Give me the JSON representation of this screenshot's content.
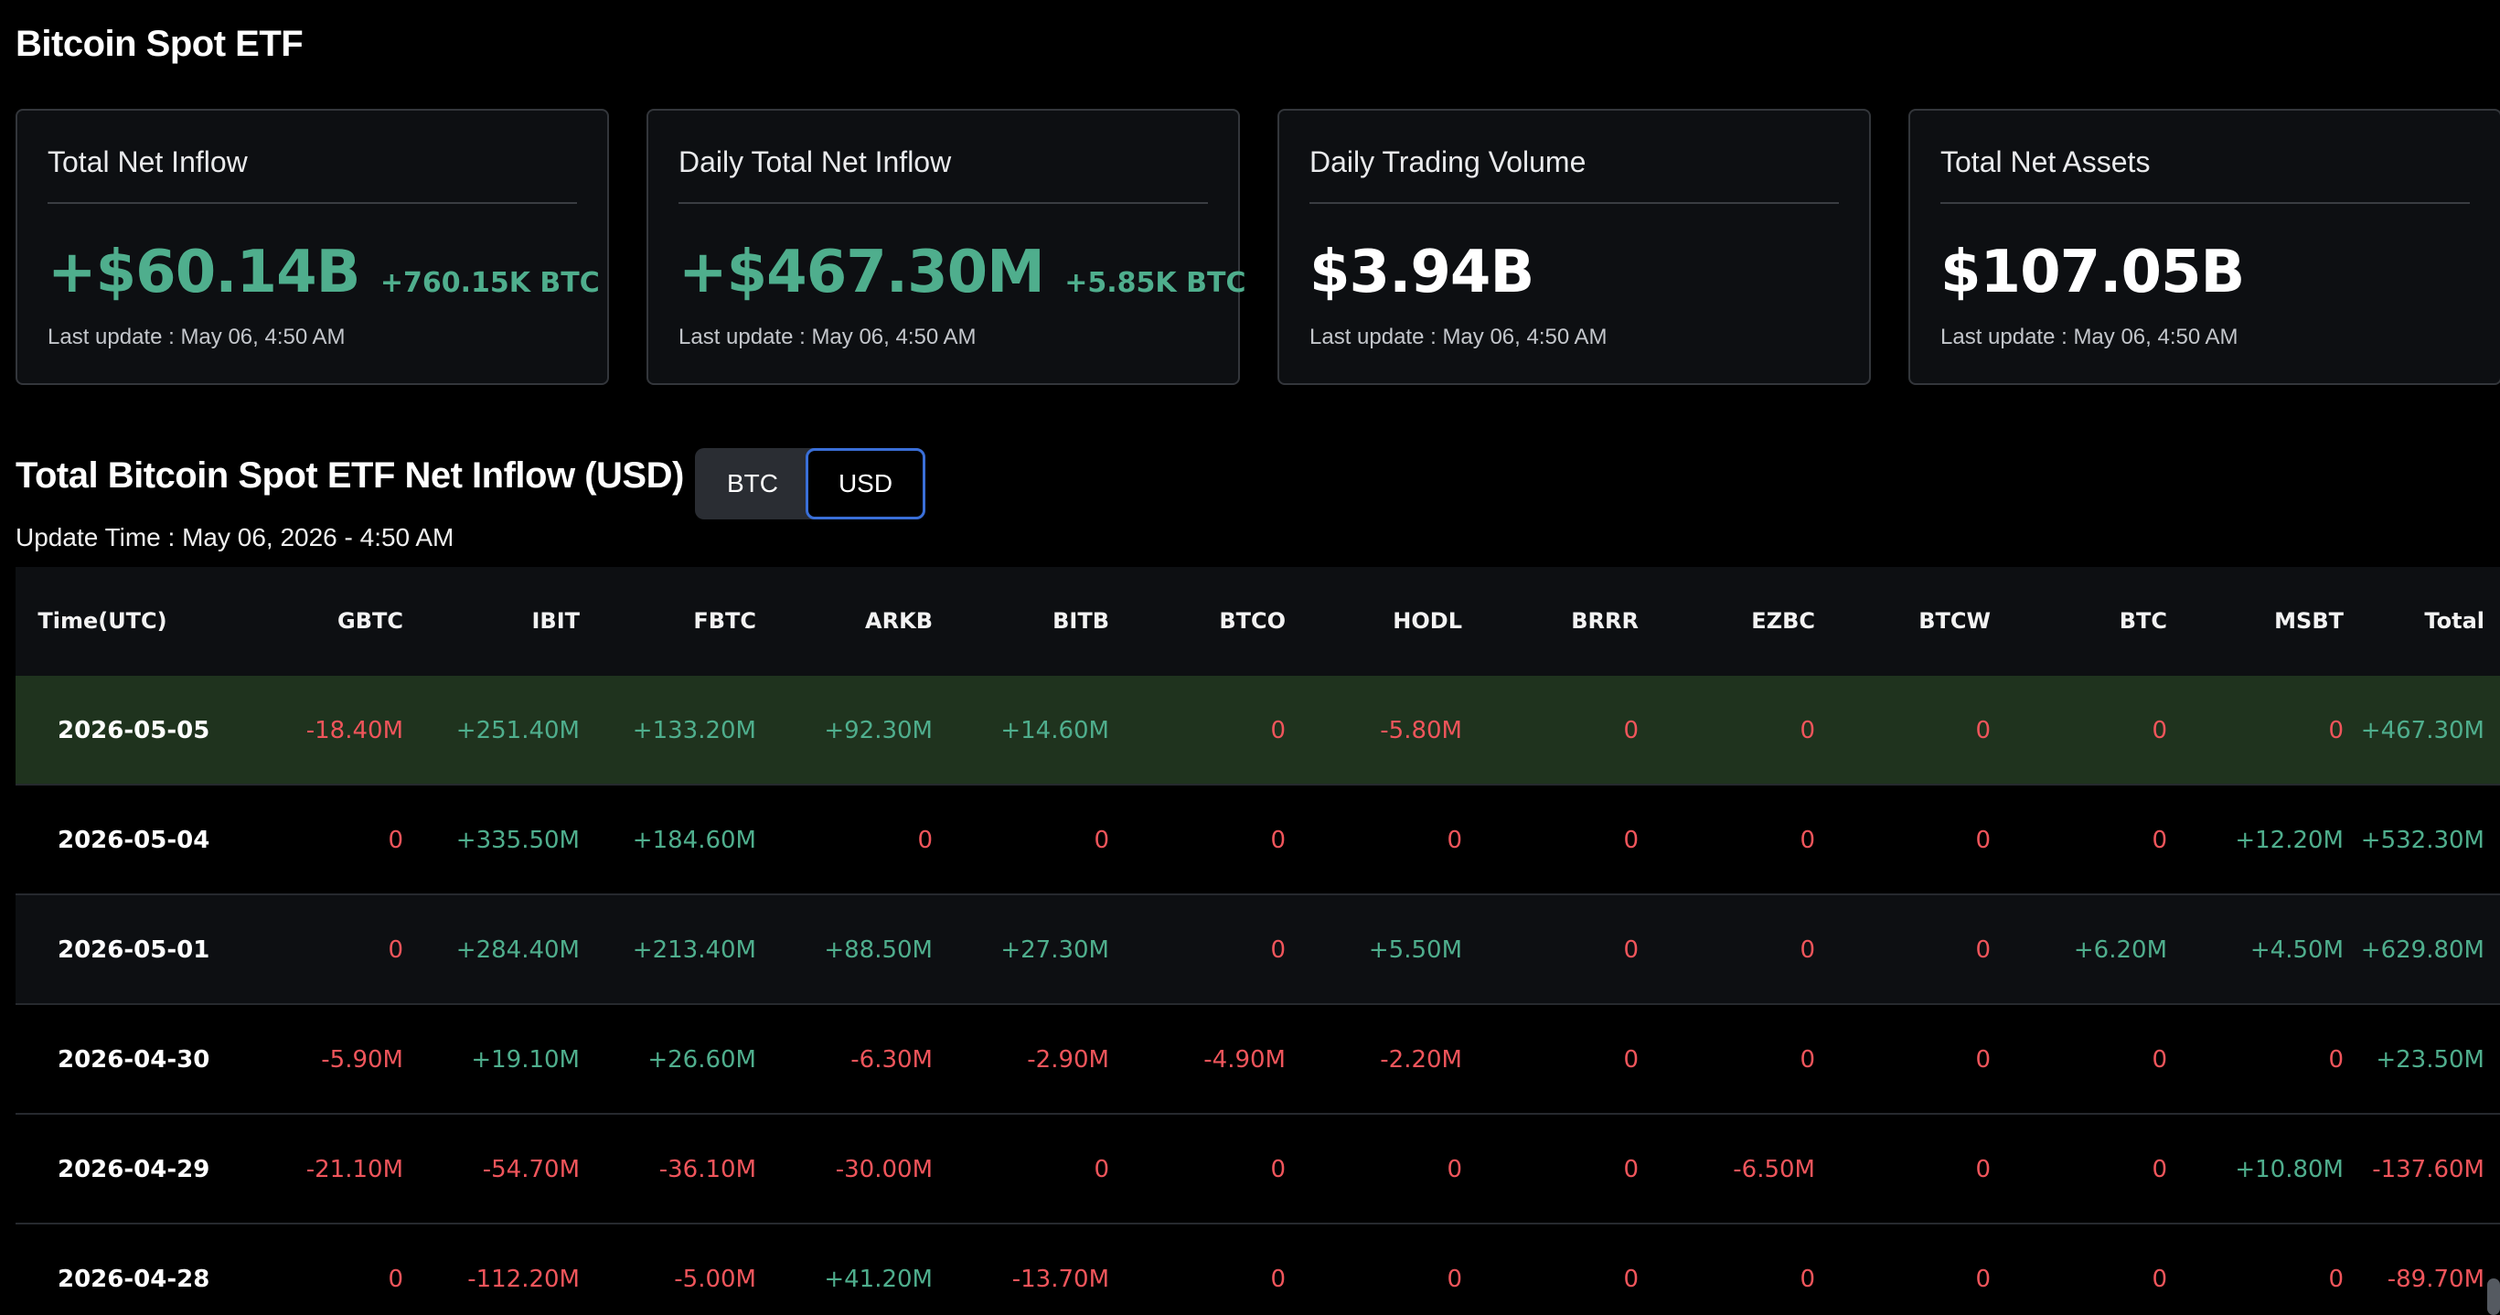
{
  "page": {
    "title": "Bitcoin Spot ETF"
  },
  "cards": [
    {
      "title": "Total Net Inflow",
      "value": "+$60.14B",
      "sub": "+760.15K BTC",
      "update": "Last update : May 06, 4:50 AM",
      "tone": "positive"
    },
    {
      "title": "Daily Total Net Inflow",
      "value": "+$467.30M",
      "sub": "+5.85K BTC",
      "update": "Last update : May 06, 4:50 AM",
      "tone": "positive"
    },
    {
      "title": "Daily Trading Volume",
      "value": "$3.94B",
      "sub": "",
      "update": "Last update : May 06, 4:50 AM",
      "tone": "neutral"
    },
    {
      "title": "Total Net Assets",
      "value": "$107.05B",
      "sub": "",
      "update": "Last update : May 06, 4:50 AM",
      "tone": "neutral"
    }
  ],
  "section": {
    "title": "Total Bitcoin Spot ETF Net Inflow (USD)",
    "toggle": {
      "btc": "BTC",
      "usd": "USD",
      "selected": "USD"
    },
    "update_time": "Update Time : May 06, 2026 - 4:50 AM"
  },
  "colors": {
    "positive": "#4fae8d",
    "negative": "#f0555b",
    "highlight_row": "#1f331e",
    "toggle_focus": "#3a6fd8"
  },
  "table": {
    "headers": [
      "Time(UTC)",
      "GBTC",
      "IBIT",
      "FBTC",
      "ARKB",
      "BITB",
      "BTCO",
      "HODL",
      "BRRR",
      "EZBC",
      "BTCW",
      "BTC",
      "MSBT",
      "Total"
    ],
    "rows": [
      {
        "date": "2026-05-05",
        "cells": [
          "-18.40M",
          "+251.40M",
          "+133.20M",
          "+92.30M",
          "+14.60M",
          "0",
          "-5.80M",
          "0",
          "0",
          "0",
          "0",
          "0",
          "+467.30M"
        ]
      },
      {
        "date": "2026-05-04",
        "cells": [
          "0",
          "+335.50M",
          "+184.60M",
          "0",
          "0",
          "0",
          "0",
          "0",
          "0",
          "0",
          "0",
          "+12.20M",
          "+532.30M"
        ]
      },
      {
        "date": "2026-05-01",
        "cells": [
          "0",
          "+284.40M",
          "+213.40M",
          "+88.50M",
          "+27.30M",
          "0",
          "+5.50M",
          "0",
          "0",
          "0",
          "+6.20M",
          "+4.50M",
          "+629.80M"
        ]
      },
      {
        "date": "2026-04-30",
        "cells": [
          "-5.90M",
          "+19.10M",
          "+26.60M",
          "-6.30M",
          "-2.90M",
          "-4.90M",
          "-2.20M",
          "0",
          "0",
          "0",
          "0",
          "0",
          "+23.50M"
        ]
      },
      {
        "date": "2026-04-29",
        "cells": [
          "-21.10M",
          "-54.70M",
          "-36.10M",
          "-30.00M",
          "0",
          "0",
          "0",
          "0",
          "-6.50M",
          "0",
          "0",
          "+10.80M",
          "-137.60M"
        ]
      },
      {
        "date": "2026-04-28",
        "cells": [
          "0",
          "-112.20M",
          "-5.00M",
          "+41.20M",
          "-13.70M",
          "0",
          "0",
          "0",
          "0",
          "0",
          "0",
          "0",
          "-89.70M"
        ]
      }
    ]
  }
}
